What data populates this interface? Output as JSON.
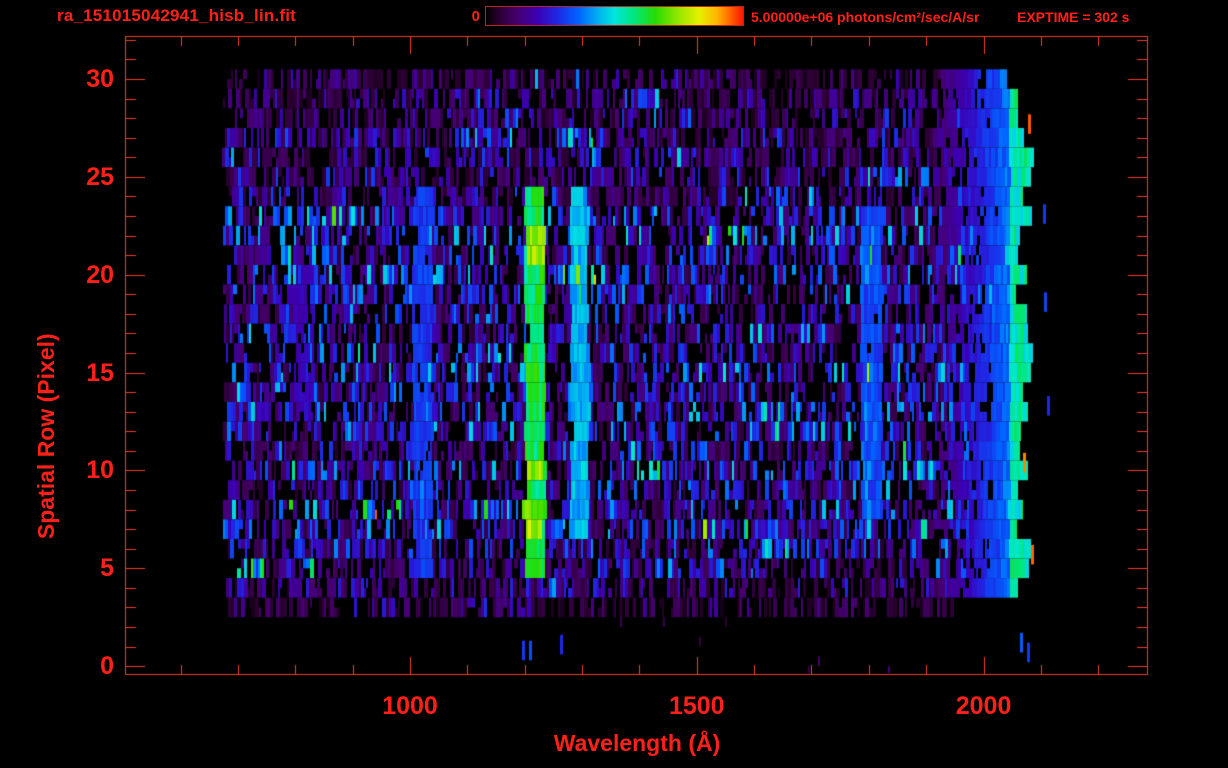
{
  "chart_data": {
    "type": "heatmap",
    "title": "ra_151015042941_hisb_lin.fit",
    "xlabel": "Wavelength (Å)",
    "ylabel": "Spatial Row (Pixel)",
    "x_range": [
      503,
      2285
    ],
    "y_range": [
      -0.4,
      32.2
    ],
    "x_ticks": [
      1000,
      1500,
      2000
    ],
    "x_minor_tick_step": 100,
    "x_minor_tick_start": 600,
    "x_minor_tick_end": 2200,
    "y_ticks": [
      0,
      5,
      10,
      15,
      20,
      25,
      30
    ],
    "y_minor_tick_step": 1,
    "grid": false,
    "exptime_label": "EXPTIME = 302 s",
    "colorbar": {
      "min_label": "0",
      "max_label": "5.00000e+06 photons/cm²/sec/A/sr",
      "min_value": 0,
      "max_value": 5000000,
      "colormap": "rainbow",
      "border_color": "#b4281e",
      "stops": [
        [
          0.0,
          "#000000"
        ],
        [
          0.05,
          "#2a0030"
        ],
        [
          0.12,
          "#46006e"
        ],
        [
          0.2,
          "#3c00b4"
        ],
        [
          0.28,
          "#1e28e6"
        ],
        [
          0.36,
          "#0064ff"
        ],
        [
          0.44,
          "#00b4f0"
        ],
        [
          0.5,
          "#00e6dc"
        ],
        [
          0.58,
          "#00e678"
        ],
        [
          0.66,
          "#28dc00"
        ],
        [
          0.75,
          "#96e600"
        ],
        [
          0.83,
          "#e6f000"
        ],
        [
          0.9,
          "#ffb400"
        ],
        [
          1.0,
          "#ff1400"
        ]
      ]
    },
    "accent_color": "#ff2119",
    "frame_color": "#f53d28",
    "background": "#000000",
    "data_extent": {
      "wavelength": [
        672,
        2090
      ],
      "rows": [
        0,
        30.6
      ]
    },
    "features": [
      {
        "name": "lyman-alpha-emission-line",
        "lambda": [
          1201,
          1236
        ],
        "rows": [
          4.7,
          24.3
        ],
        "level": 0.62
      },
      {
        "name": "lyman-alpha-hotspot-low-1",
        "lambda": [
          1203,
          1232
        ],
        "rows": [
          6.5,
          8.3
        ],
        "level": 0.78
      },
      {
        "name": "lyman-alpha-hotspot-low-2",
        "lambda": [
          1203,
          1232
        ],
        "rows": [
          9.6,
          10.9
        ],
        "level": 0.76
      },
      {
        "name": "lyman-alpha-hotspot-high",
        "lambda": [
          1205,
          1234
        ],
        "rows": [
          20.6,
          22.4
        ],
        "level": 0.74
      },
      {
        "name": "oi-1304-airglow-line",
        "lambda": [
          1279,
          1312
        ],
        "rows": [
          6.2,
          24.2
        ],
        "level": 0.45
      },
      {
        "name": "lyman-beta-band",
        "lambda": [
          1006,
          1040
        ],
        "rows": [
          5.0,
          24.0
        ],
        "level": 0.3
      },
      {
        "name": "faint-band-810",
        "lambda": [
          800,
          832
        ],
        "rows": [
          13.0,
          20.0
        ],
        "level": 0.2
      },
      {
        "name": "band-1800",
        "lambda": [
          1788,
          1823
        ],
        "rows": [
          8.0,
          23.3
        ],
        "level": 0.33
      },
      {
        "name": "long-wavelength-airglow-ramp",
        "lambda": [
          1925,
          2090
        ],
        "rows": [
          3.2,
          30.6
        ],
        "level": 0.48,
        "ramp": true
      },
      {
        "name": "right-edge-bright-column",
        "lambda": [
          2045,
          2088
        ],
        "rows": [
          3.2,
          30.6
        ],
        "level": 0.55
      }
    ],
    "overlay_strips": [
      {
        "lambda": 2077,
        "row": 27.7,
        "level": 0.96
      },
      {
        "lambda": 2068,
        "row": 10.4,
        "level": 0.93
      },
      {
        "lambda": 2082,
        "row": 5.7,
        "level": 0.95
      },
      {
        "lambda": 1218,
        "row": 30.0,
        "level": 0.45
      },
      {
        "lambda": 1289,
        "row": 30.0,
        "level": 0.38
      },
      {
        "lambda": 2106,
        "row": 18.6,
        "level": 0.32
      },
      {
        "lambda": 2103,
        "row": 23.1,
        "level": 0.3
      },
      {
        "lambda": 2110,
        "row": 13.3,
        "level": 0.28
      },
      {
        "lambda": 1196,
        "row": 0.8,
        "level": 0.3
      },
      {
        "lambda": 1207,
        "row": 0.8,
        "level": 0.33
      },
      {
        "lambda": 1262,
        "row": 1.1,
        "level": 0.28
      },
      {
        "lambda": 2064,
        "row": 1.2,
        "level": 0.35
      },
      {
        "lambda": 2075,
        "row": 0.7,
        "level": 0.3
      }
    ]
  }
}
